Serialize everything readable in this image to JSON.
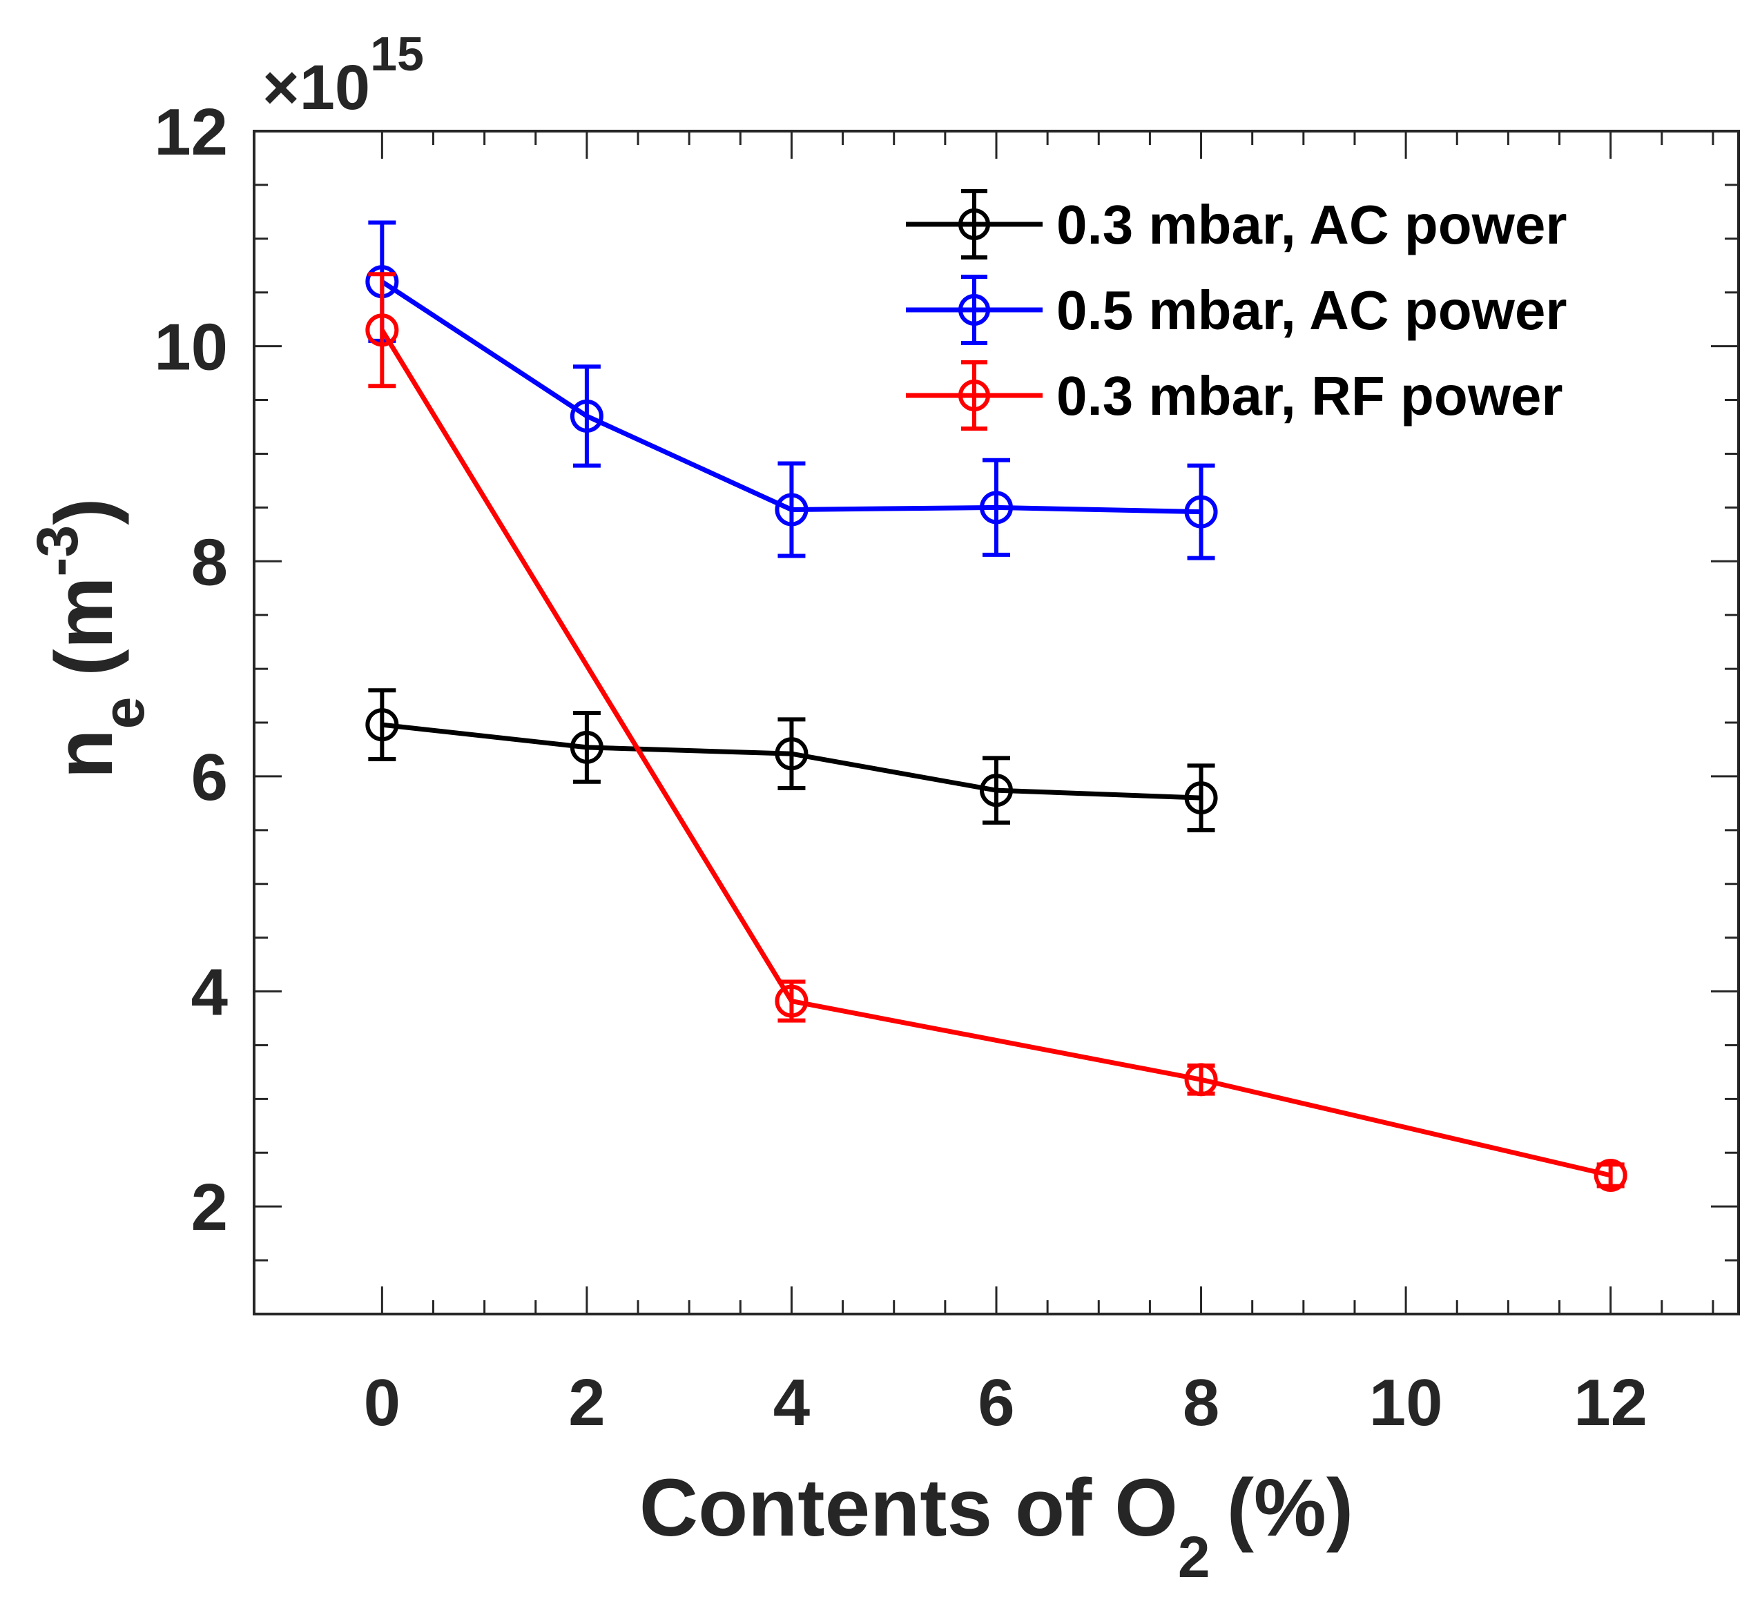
{
  "chart_data": {
    "type": "line",
    "title": "",
    "xlabel_main": "Contents of O",
    "xlabel_sub": "2",
    "xlabel_unit": "(%)",
    "ylabel_main": "n",
    "ylabel_sub": "e",
    "ylabel_unit": "(m",
    "ylabel_sup": "-3",
    "ylabel_close": ")",
    "y_multiplier_prefix": "×10",
    "y_multiplier_exp": "15",
    "xlim": [
      -1.25,
      13.25
    ],
    "ylim": [
      1,
      12
    ],
    "xticks": [
      0,
      2,
      4,
      6,
      8,
      10,
      12
    ],
    "xtick_labels": [
      "0",
      "2",
      "4",
      "6",
      "8",
      "10",
      "12"
    ],
    "yticks": [
      2,
      4,
      6,
      8,
      10,
      12
    ],
    "ytick_labels": [
      "2",
      "4",
      "6",
      "8",
      "10",
      "12"
    ],
    "x_minor_step": 0.5,
    "y_minor_step": 0.5,
    "legend_position": "top-right",
    "series": [
      {
        "name": "0.3 mbar, AC power",
        "color": "#000000",
        "x": [
          0,
          2,
          4,
          6,
          8
        ],
        "y": [
          6.48,
          6.27,
          6.21,
          5.87,
          5.8
        ],
        "err": [
          0.32,
          0.32,
          0.32,
          0.3,
          0.3
        ]
      },
      {
        "name": "0.5 mbar, AC power",
        "color": "#0000ff",
        "x": [
          0,
          2,
          4,
          6,
          8
        ],
        "y": [
          10.6,
          9.35,
          8.48,
          8.5,
          8.46
        ],
        "err": [
          0.55,
          0.46,
          0.43,
          0.44,
          0.43
        ]
      },
      {
        "name": "0.3 mbar, RF power",
        "color": "#ff0000",
        "x": [
          0,
          4,
          8,
          12
        ],
        "y": [
          10.15,
          3.91,
          3.18,
          2.29
        ],
        "err": [
          0.52,
          0.18,
          0.13,
          0.1
        ]
      }
    ]
  }
}
